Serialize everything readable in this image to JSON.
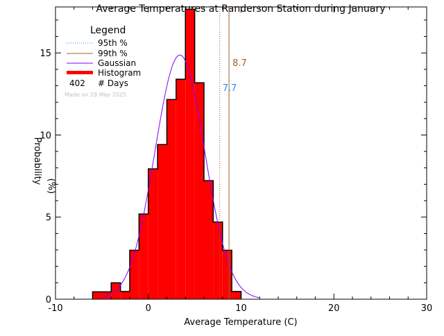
{
  "chart_data": {
    "type": "bar",
    "title": "Average Temperatures at Randerson Station during January",
    "xlabel": "Average Temperature (C)",
    "ylabel": "Probability",
    "ylabel_unit": "(%)",
    "xlim": [
      -10,
      30
    ],
    "ylim": [
      0,
      17.8
    ],
    "xticks": [
      -10,
      0,
      10,
      20,
      30
    ],
    "yticks": [
      0,
      5,
      10,
      15
    ],
    "grid": false,
    "histogram": {
      "bin_edges": [
        -6,
        -4,
        -3,
        -2,
        -1,
        0,
        1,
        2,
        3,
        4,
        5,
        6,
        7,
        8,
        9,
        10
      ],
      "values": [
        0.45,
        1.0,
        0.47,
        2.98,
        5.19,
        7.94,
        9.42,
        12.16,
        13.4,
        17.66,
        13.18,
        7.22,
        4.7,
        2.98,
        0.47
      ]
    },
    "gaussian": {
      "mean": 3.4,
      "sigma": 2.68,
      "peak": 14.87
    },
    "percentile_95": {
      "value": 7.7,
      "label": "7.7"
    },
    "percentile_99": {
      "value": 8.7,
      "label": "8.7"
    },
    "legend": {
      "title": "Legend",
      "placement": "top-left",
      "entries": [
        "95th %",
        "99th %",
        "Gaussian",
        "Histogram"
      ],
      "days_count": "402",
      "days_label": "# Days",
      "made_on": "Made on 29 May 2025"
    },
    "colors": {
      "histogram": "#ff0000",
      "gaussian": "#8000ff",
      "p95": "#1e90ff",
      "p99": "#a0602a",
      "made_on": "#c0c0c0"
    }
  }
}
